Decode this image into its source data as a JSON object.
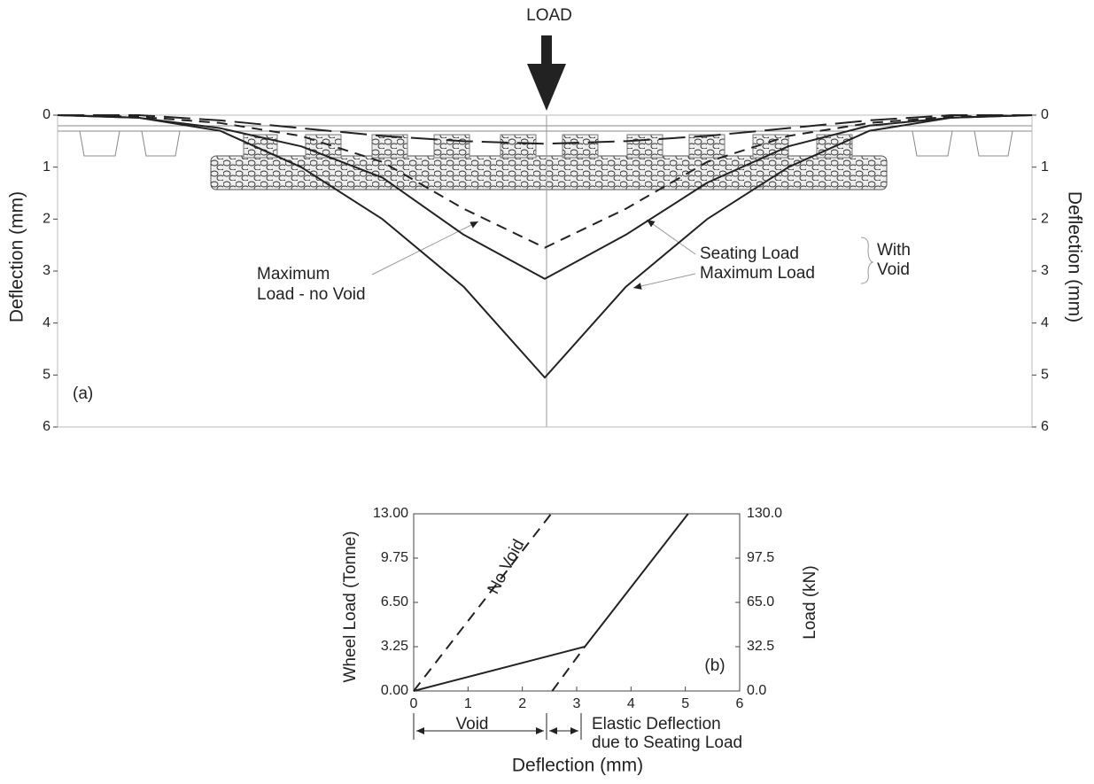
{
  "chart_data": [
    {
      "type": "line",
      "title": "LOAD",
      "ylabel": "Deflection (mm)",
      "ylim": [
        0,
        6
      ],
      "yticks": [
        0,
        1,
        2,
        3,
        4,
        5,
        6
      ],
      "inverted": true,
      "categories": [
        null,
        null,
        null,
        null,
        null,
        null,
        null,
        null,
        null,
        null,
        null,
        null,
        null
      ],
      "series": [
        {
          "color": "#222222",
          "style": "solid",
          "values": [
            0,
            0.05,
            0.3,
            1.0,
            2.0,
            3.3,
            5.05,
            3.3,
            2.0,
            1.0,
            0.3,
            0.05,
            0
          ]
        },
        {
          "color": "#222222",
          "style": "solid",
          "values": [
            0,
            0.05,
            0.25,
            0.6,
            1.2,
            2.3,
            3.15,
            2.3,
            1.3,
            0.6,
            0.2,
            0.05,
            0
          ]
        },
        {
          "color": "#222222",
          "style": "dashed",
          "values": [
            0,
            0.03,
            0.15,
            0.4,
            0.9,
            1.8,
            2.55,
            1.8,
            0.9,
            0.4,
            0.15,
            0.03,
            0
          ]
        },
        {
          "color": "#222222",
          "style": "longdash",
          "values": [
            0,
            0,
            0.1,
            0.25,
            0.4,
            0.5,
            0.55,
            0.5,
            0.4,
            0.25,
            0.1,
            0,
            0
          ]
        }
      ],
      "annotations": [
        "Seating Load",
        "Maximum Load",
        "With",
        "Void",
        "Maximum",
        "Load - no Void",
        "(a)"
      ]
    },
    {
      "type": "line",
      "xlabel": "Deflection (mm)",
      "ylabel": "Wheel Load (Tonne)",
      "y2label": "Load (kN)",
      "xlim": [
        0,
        6
      ],
      "xticks": [
        0,
        1,
        2,
        3,
        4,
        5,
        6
      ],
      "ylim": [
        0,
        13
      ],
      "yticks": [
        {
          "value": 0,
          "label": "0.00"
        },
        {
          "value": 3.25,
          "label": "3.25"
        },
        {
          "value": 6.5,
          "label": "6.50"
        },
        {
          "value": 9.75,
          "label": "9.75"
        },
        {
          "value": 13,
          "label": "13.00"
        }
      ],
      "y2lim": [
        0,
        130
      ],
      "y2ticks": [
        {
          "value": 0,
          "label": "0.0"
        },
        {
          "value": 32.5,
          "label": "32.5"
        },
        {
          "value": 65,
          "label": "65.0"
        },
        {
          "value": 97.5,
          "label": "97.5"
        },
        {
          "value": 130,
          "label": "130.0"
        }
      ],
      "series": [
        {
          "color": "#222222",
          "style": "solid",
          "x": [
            0,
            3.15,
            5.05
          ],
          "values": [
            0,
            3.25,
            13
          ]
        },
        {
          "color": "#222222",
          "style": "dashed",
          "x": [
            0,
            2.53
          ],
          "values": [
            0,
            13
          ]
        },
        {
          "color": "#222222",
          "style": "dashed",
          "x": [
            2.55,
            3.15
          ],
          "values": [
            0,
            3.25
          ]
        }
      ],
      "annotations": [
        "No Void",
        "(b)",
        "Void",
        "Elastic Deflection",
        "due to Seating Load"
      ]
    }
  ]
}
